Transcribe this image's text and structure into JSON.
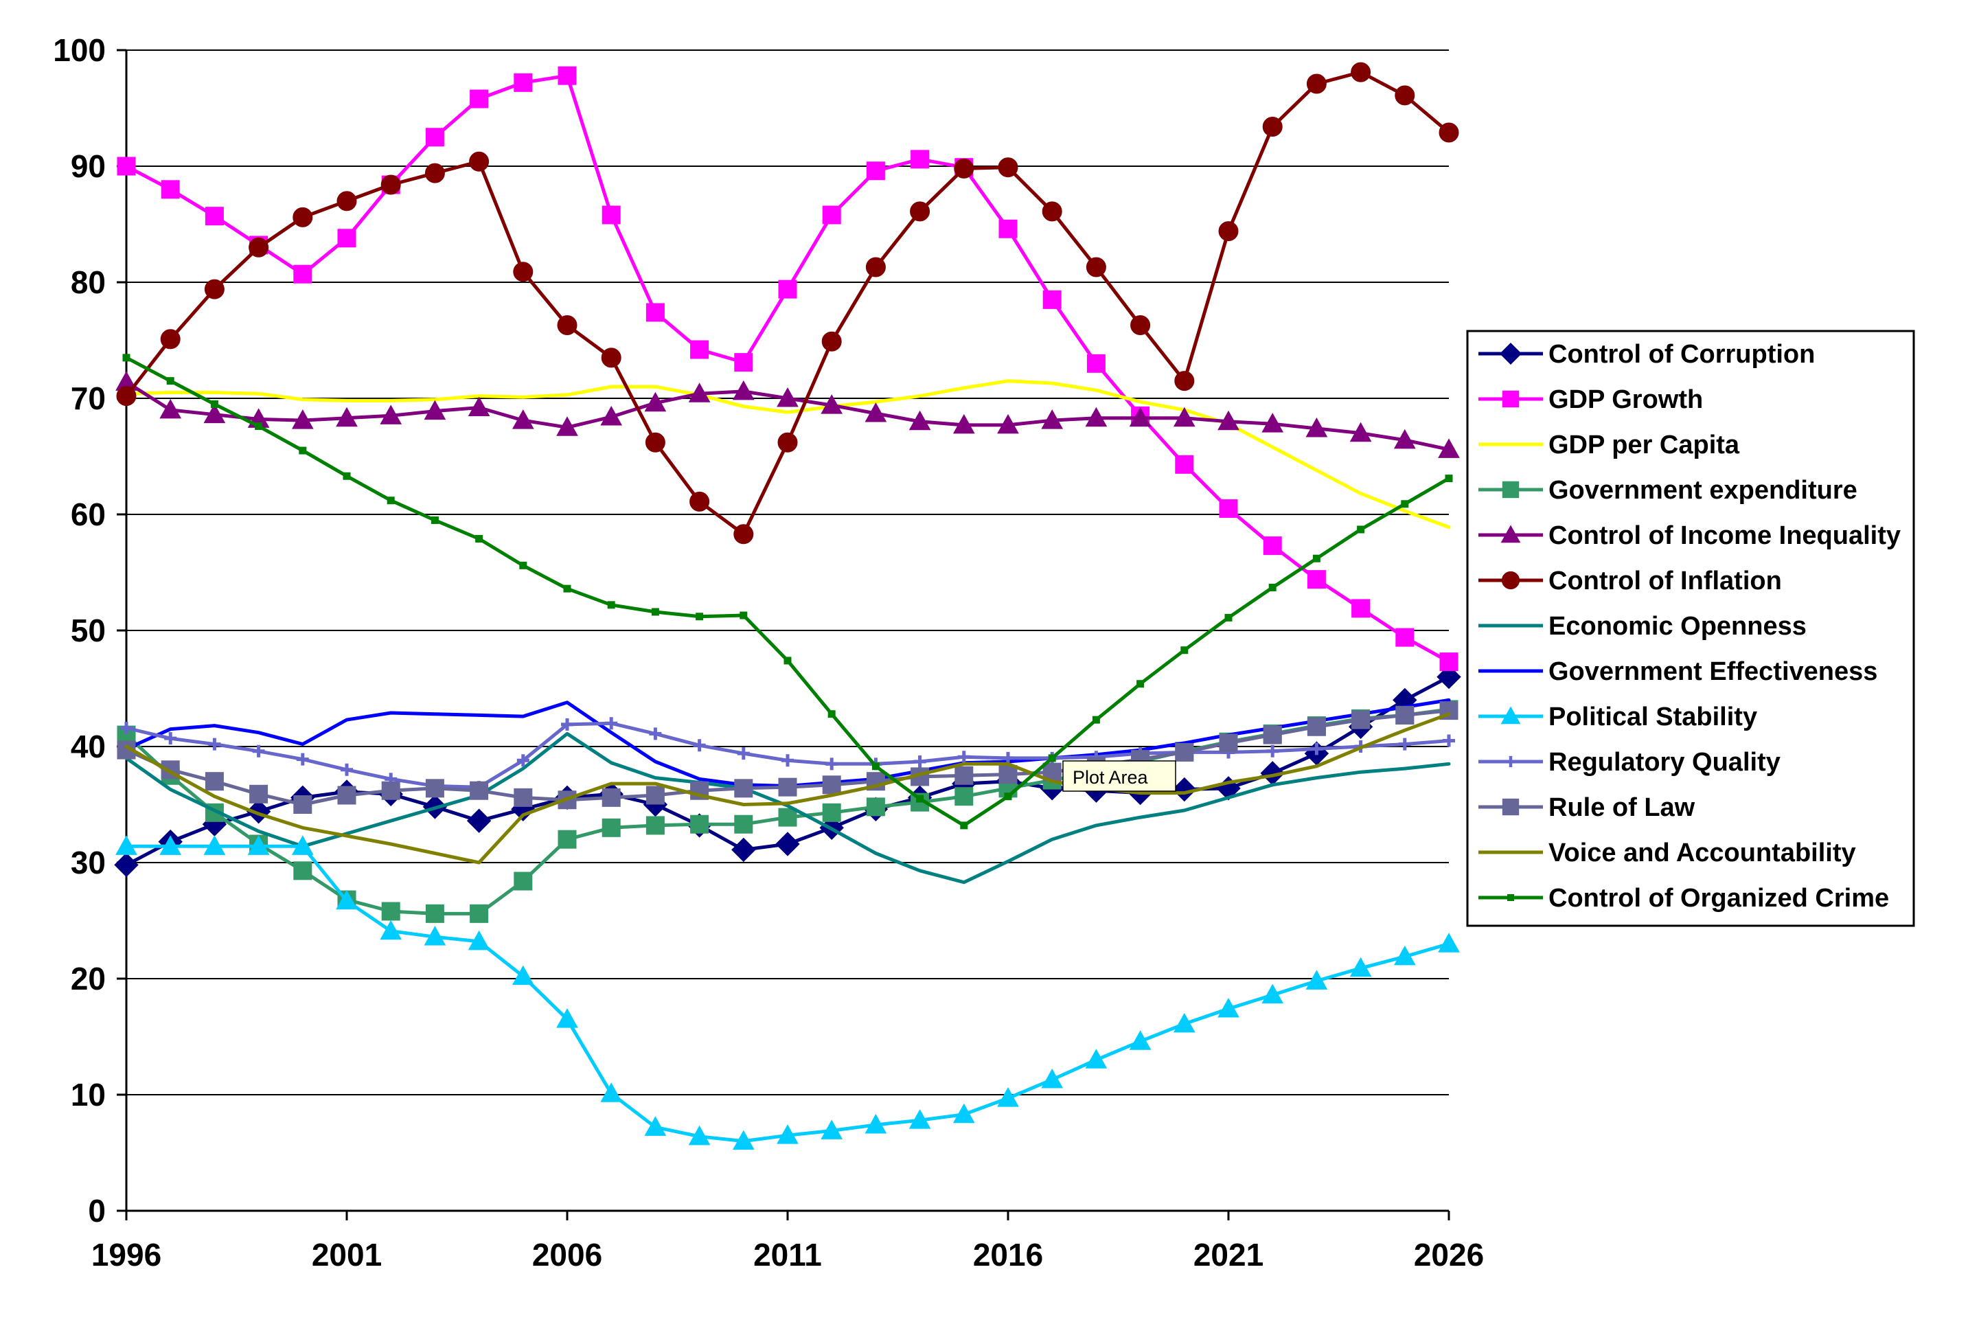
{
  "chart_data": {
    "type": "line",
    "title": "",
    "xlabel": "",
    "ylabel": "",
    "x": [
      1996,
      1997,
      1998,
      1999,
      2000,
      2001,
      2002,
      2003,
      2004,
      2005,
      2006,
      2007,
      2008,
      2009,
      2010,
      2011,
      2012,
      2013,
      2014,
      2015,
      2016,
      2017,
      2018,
      2019,
      2020,
      2021,
      2022,
      2023,
      2024,
      2025,
      2026
    ],
    "xlim": [
      1996,
      2026
    ],
    "ylim": [
      0,
      100
    ],
    "x_ticks": [
      1996,
      2001,
      2006,
      2011,
      2016,
      2021,
      2026
    ],
    "y_ticks": [
      0,
      10,
      20,
      30,
      40,
      50,
      60,
      70,
      80,
      90,
      100
    ],
    "grid": "horizontal",
    "legend_position": "right",
    "tooltip": "Plot Area",
    "series": [
      {
        "name": "Control of Corruption",
        "color": "#000080",
        "marker": "diamond",
        "values": [
          29.8,
          31.8,
          33.3,
          34.4,
          35.6,
          36.1,
          35.9,
          34.8,
          33.6,
          34.6,
          35.6,
          35.9,
          35.0,
          33.2,
          31.1,
          31.6,
          33.0,
          34.6,
          35.6,
          36.8,
          37.0,
          36.4,
          36.2,
          36.0,
          36.3,
          36.4,
          37.7,
          39.4,
          41.7,
          44.0,
          46.0
        ]
      },
      {
        "name": "GDP Growth",
        "color": "#FF00FF",
        "marker": "square",
        "values": [
          90.0,
          88.0,
          85.7,
          83.2,
          80.7,
          83.8,
          88.4,
          92.5,
          95.8,
          97.2,
          97.8,
          85.8,
          77.4,
          74.2,
          73.1,
          79.4,
          85.8,
          89.6,
          90.6,
          89.9,
          84.6,
          78.5,
          73.0,
          68.5,
          64.3,
          60.5,
          57.3,
          54.4,
          51.9,
          49.4,
          47.3
        ]
      },
      {
        "name": "GDP per Capita",
        "color": "#FFFF00",
        "marker": "none",
        "values": [
          70.4,
          70.5,
          70.5,
          70.4,
          69.9,
          69.8,
          69.8,
          69.9,
          70.2,
          70.1,
          70.3,
          71.0,
          71.0,
          70.3,
          69.3,
          68.8,
          69.3,
          69.7,
          70.2,
          70.9,
          71.5,
          71.3,
          70.7,
          69.7,
          69.0,
          67.8,
          65.8,
          63.8,
          61.8,
          60.3,
          58.9
        ]
      },
      {
        "name": "Government expenditure",
        "color": "#339966",
        "marker": "square",
        "values": [
          41.0,
          37.5,
          34.3,
          31.6,
          29.3,
          26.8,
          25.8,
          25.6,
          25.6,
          28.4,
          32.0,
          33.0,
          33.2,
          33.3,
          33.3,
          33.9,
          34.3,
          34.8,
          35.2,
          35.7,
          36.4,
          37.1,
          37.8,
          38.7,
          39.6,
          40.4,
          41.1,
          41.8,
          42.4,
          42.7,
          43.2
        ]
      },
      {
        "name": "Control of Income Inequality",
        "color": "#800080",
        "marker": "triangle",
        "values": [
          71.4,
          69.0,
          68.6,
          68.2,
          68.1,
          68.3,
          68.5,
          68.9,
          69.2,
          68.1,
          67.5,
          68.4,
          69.6,
          70.4,
          70.6,
          70.0,
          69.4,
          68.7,
          68.0,
          67.7,
          67.7,
          68.1,
          68.3,
          68.3,
          68.3,
          68.0,
          67.8,
          67.4,
          67.0,
          66.4,
          65.6
        ]
      },
      {
        "name": "Control of Inflation",
        "color": "#800000",
        "marker": "circle",
        "values": [
          70.2,
          75.1,
          79.4,
          83.0,
          85.6,
          87.0,
          88.4,
          89.4,
          90.4,
          80.9,
          76.3,
          73.5,
          66.2,
          61.1,
          58.3,
          66.2,
          74.9,
          81.3,
          86.1,
          89.8,
          89.9,
          86.1,
          81.3,
          76.3,
          71.5,
          84.4,
          93.4,
          97.1,
          98.1,
          96.1,
          92.9
        ]
      },
      {
        "name": "Economic Openness",
        "color": "#008080",
        "marker": "none",
        "values": [
          39.0,
          36.3,
          34.5,
          32.7,
          31.4,
          32.5,
          33.6,
          34.7,
          35.8,
          38.1,
          41.1,
          38.6,
          37.3,
          36.9,
          36.4,
          34.9,
          32.9,
          30.8,
          29.3,
          28.3,
          30.1,
          32.0,
          33.2,
          33.9,
          34.5,
          35.6,
          36.7,
          37.3,
          37.8,
          38.1,
          38.5
        ]
      },
      {
        "name": "Government Effectiveness",
        "color": "#0000FF",
        "marker": "none",
        "values": [
          39.8,
          41.5,
          41.8,
          41.2,
          40.2,
          42.3,
          42.9,
          42.8,
          42.7,
          42.6,
          43.8,
          41.2,
          38.7,
          37.2,
          36.7,
          36.6,
          36.9,
          37.2,
          37.9,
          38.6,
          38.7,
          39.0,
          39.3,
          39.7,
          40.3,
          41.0,
          41.6,
          42.2,
          42.8,
          43.4,
          44.0
        ]
      },
      {
        "name": "Political Stability",
        "color": "#00CCFF",
        "marker": "triangle",
        "values": [
          31.4,
          31.4,
          31.4,
          31.4,
          31.4,
          26.7,
          24.1,
          23.6,
          23.2,
          20.2,
          16.5,
          10.1,
          7.2,
          6.4,
          6.0,
          6.5,
          6.9,
          7.4,
          7.8,
          8.3,
          9.7,
          11.3,
          13.0,
          14.6,
          16.1,
          17.4,
          18.6,
          19.8,
          20.9,
          21.9,
          23.0
        ]
      },
      {
        "name": "Regulatory Quality",
        "color": "#6666CC",
        "marker": "plus",
        "values": [
          41.6,
          40.7,
          40.2,
          39.6,
          38.9,
          38.0,
          37.2,
          36.6,
          36.5,
          38.8,
          41.9,
          42.0,
          41.1,
          40.1,
          39.4,
          38.8,
          38.5,
          38.5,
          38.7,
          39.1,
          39.0,
          39.0,
          39.1,
          39.4,
          39.5,
          39.5,
          39.6,
          39.8,
          40.0,
          40.2,
          40.5
        ]
      },
      {
        "name": "Rule of Law",
        "color": "#666699",
        "marker": "square",
        "values": [
          39.7,
          38.0,
          37.0,
          35.9,
          35.0,
          35.8,
          36.2,
          36.4,
          36.2,
          35.6,
          35.4,
          35.6,
          35.8,
          36.2,
          36.4,
          36.5,
          36.7,
          37.0,
          37.4,
          37.5,
          37.6,
          37.8,
          38.3,
          38.9,
          39.5,
          40.3,
          41.0,
          41.7,
          42.3,
          42.7,
          43.1
        ]
      },
      {
        "name": "Voice and Accountability",
        "color": "#808000",
        "marker": "none",
        "values": [
          40.0,
          37.8,
          35.7,
          34.2,
          33.0,
          32.3,
          31.6,
          30.8,
          30.0,
          34.1,
          35.5,
          36.8,
          36.8,
          35.8,
          35.0,
          35.1,
          35.8,
          36.6,
          37.6,
          38.5,
          38.5,
          37.0,
          36.4,
          36.0,
          36.0,
          36.9,
          37.5,
          38.3,
          39.9,
          41.4,
          42.8
        ]
      },
      {
        "name": "Control of Organized Crime",
        "color": "#008000",
        "marker": "smallsquare",
        "values": [
          73.5,
          71.5,
          69.5,
          67.6,
          65.5,
          63.3,
          61.2,
          59.5,
          57.9,
          55.6,
          53.6,
          52.2,
          51.6,
          51.2,
          51.3,
          47.4,
          42.8,
          38.3,
          35.5,
          33.2,
          35.7,
          39.0,
          42.3,
          45.4,
          48.3,
          51.1,
          53.7,
          56.2,
          58.7,
          60.9,
          63.1
        ]
      }
    ]
  }
}
